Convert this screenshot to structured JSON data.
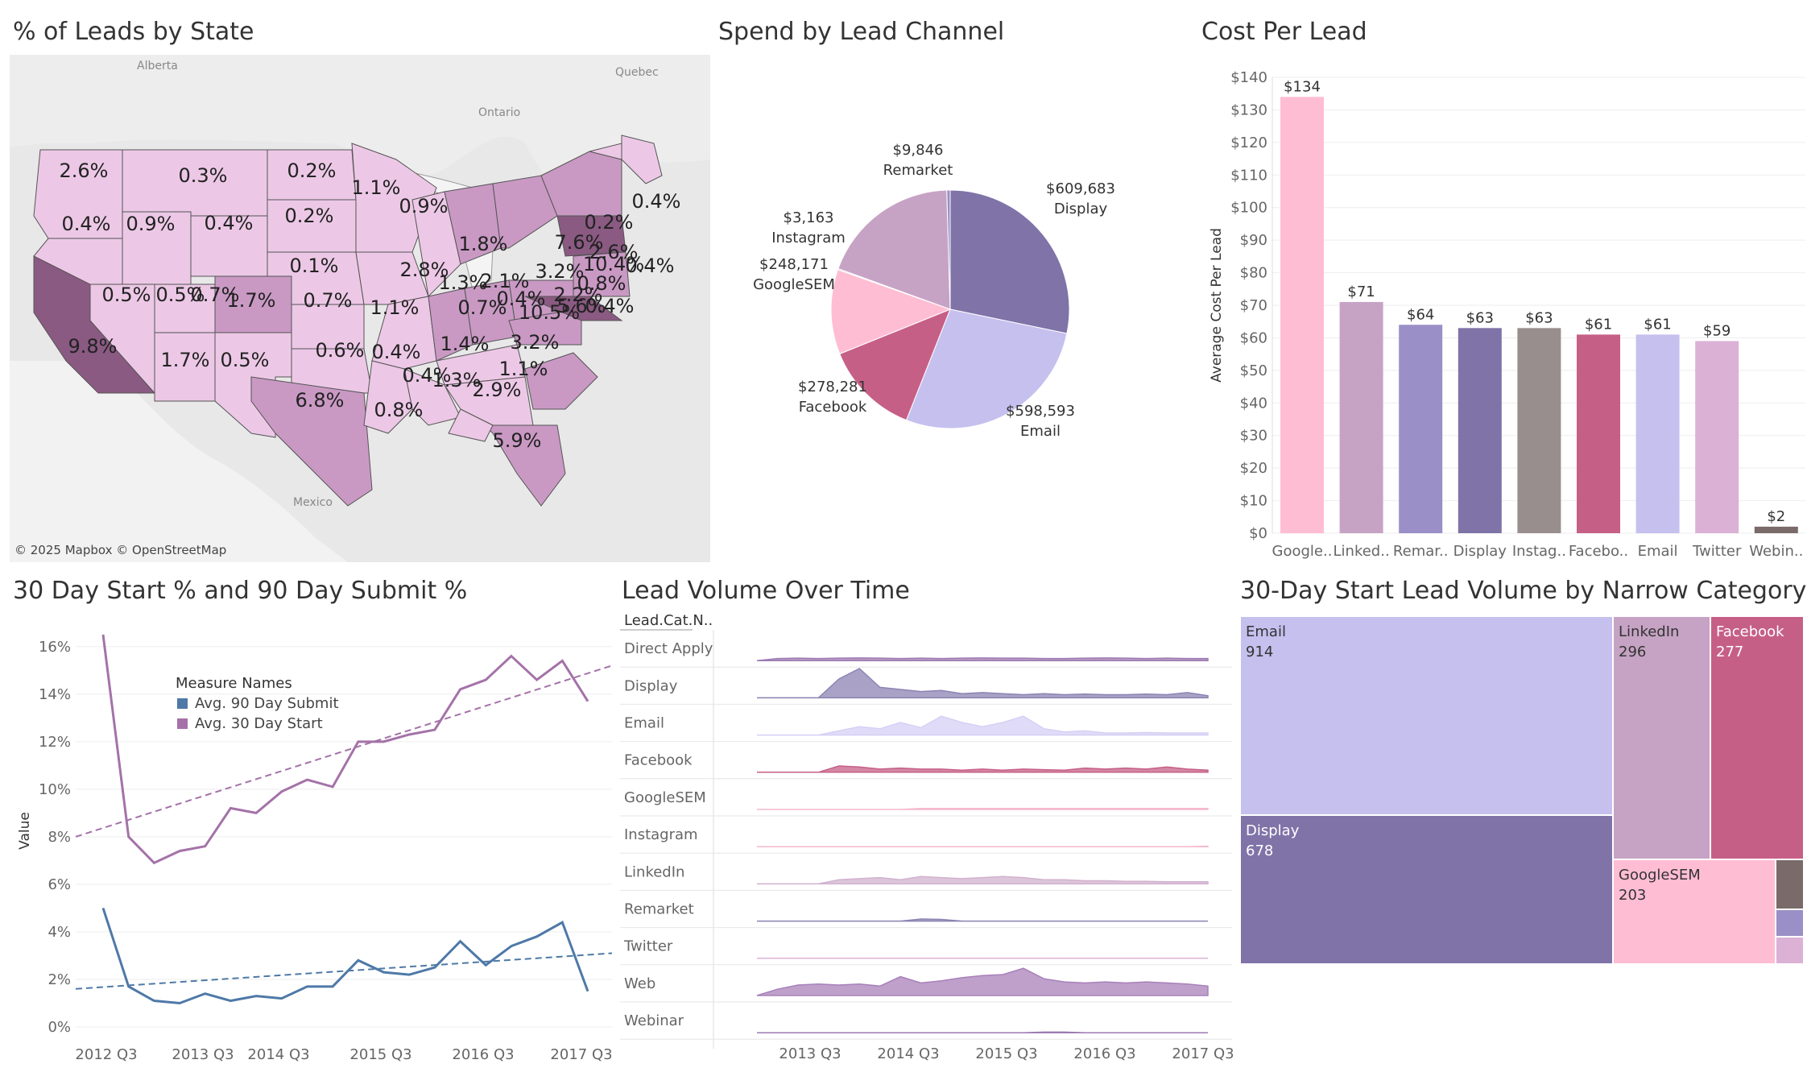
{
  "titles": {
    "map": "% of Leads by State",
    "pie": "Spend by Lead Channel",
    "cpl": "Cost Per Lead",
    "line": "30 Day Start % and 90 Day Submit %",
    "volume": "Lead Volume Over Time",
    "treemap": "30-Day Start Lead Volume by Narrow Category"
  },
  "map": {
    "attribution": "© 2025 Mapbox © OpenStreetMap",
    "places": [
      "Alberta",
      "Quebec",
      "Ontario",
      "Mexico"
    ],
    "state_labels": [
      "2.6%",
      "0.3%",
      "0.2%",
      "1.1%",
      "0.4%",
      "0.9%",
      "0.4%",
      "0.2%",
      "0.1%",
      "0.9%",
      "1.8%",
      "0.2%",
      "0.4%",
      "7.6%",
      "2.6%",
      "10.4%",
      "0.4%",
      "0.5%",
      "2.8%",
      "1.3%",
      "2.1%",
      "3.2%",
      "0.8%",
      "9.8%",
      "0.5%",
      "0.7%",
      "1.7%",
      "0.7%",
      "1.1%",
      "0.7%",
      "0.4%",
      "2.2%",
      "5.6%",
      "0.4%",
      "10.5%",
      "1.7%",
      "0.5%",
      "0.6%",
      "1.4%",
      "3.2%",
      "0.4%",
      "1.1%",
      "0.4%",
      "1.3%",
      "2.9%",
      "6.8%",
      "0.8%",
      "5.9%"
    ],
    "colors": {
      "light": "#ecc8e6",
      "mid": "#c999c4",
      "dark": "#a47199",
      "darkest": "#8a5a82"
    }
  },
  "pie": {
    "slices": [
      {
        "label": "Display",
        "value": 609683,
        "text": "$609,683",
        "color": "#7f73a8"
      },
      {
        "label": "Email",
        "value": 598593,
        "text": "$598,593",
        "color": "#c6c0ef"
      },
      {
        "label": "Facebook",
        "value": 278281,
        "text": "$278,281",
        "color": "#c65f86"
      },
      {
        "label": "GoogleSEM",
        "value": 248171,
        "text": "$248,171",
        "color": "#ffbdd4"
      },
      {
        "label": "Instagram",
        "value": 3163,
        "text": "$3,163",
        "color": "#9b95a0"
      },
      {
        "label": "Remarket",
        "value": 9846,
        "text": "$9,846",
        "color": "#9a8fc6"
      },
      {
        "label": "Other",
        "value": 410000,
        "text": "",
        "color": "#c6a3c4"
      }
    ]
  },
  "chart_data": [
    {
      "type": "bar",
      "title": "Cost Per Lead",
      "ylabel": "Average Cost Per Lead",
      "ylim": [
        0,
        140
      ],
      "yticks": [
        "$0",
        "$10",
        "$20",
        "$30",
        "$40",
        "$50",
        "$60",
        "$70",
        "$80",
        "$90",
        "$100",
        "$110",
        "$120",
        "$130",
        "$140"
      ],
      "categories": [
        "Google..",
        "Linked..",
        "Remar..",
        "Display",
        "Instag..",
        "Facebo..",
        "Email",
        "Twitter",
        "Webin.."
      ],
      "values": [
        134,
        71,
        64,
        63,
        63,
        61,
        61,
        59,
        2
      ],
      "value_labels": [
        "$134",
        "$71",
        "$64",
        "$63",
        "$63",
        "$61",
        "$61",
        "$59",
        "$2"
      ],
      "colors": [
        "#ffbdd4",
        "#c6a3c4",
        "#9a8fc6",
        "#7f73a8",
        "#998e8e",
        "#c65f86",
        "#c6c0ef",
        "#dbb1d6",
        "#7a6a6a"
      ]
    },
    {
      "type": "line",
      "title": "30 Day Start % and 90 Day Submit %",
      "ylabel": "Value",
      "ylim": [
        0,
        16.5
      ],
      "yticks": [
        "0%",
        "2%",
        "4%",
        "6%",
        "8%",
        "10%",
        "12%",
        "14%",
        "16%"
      ],
      "xticks": [
        "2012 Q3",
        "2013 Q3",
        "2014 Q3",
        "2015 Q3",
        "2016 Q3",
        "2017 Q3"
      ],
      "legend_title": "Measure Names",
      "series": [
        {
          "name": "Avg. 90 Day Submit",
          "color": "#4e79a7",
          "values": [
            5.0,
            1.7,
            1.1,
            1.0,
            1.4,
            1.1,
            1.3,
            1.2,
            1.7,
            1.7,
            2.8,
            2.3,
            2.2,
            2.5,
            3.6,
            2.6,
            3.4,
            3.8,
            4.4,
            1.5
          ],
          "trend": [
            1.6,
            3.1
          ]
        },
        {
          "name": "Avg. 30 Day Start",
          "color": "#a472a8",
          "values": [
            16.5,
            8.0,
            6.9,
            7.4,
            7.6,
            9.2,
            9.0,
            9.9,
            10.4,
            10.1,
            12.0,
            12.0,
            12.3,
            12.5,
            14.2,
            14.6,
            15.6,
            14.6,
            15.4,
            13.7
          ],
          "trend": [
            8.0,
            15.2
          ]
        }
      ]
    },
    {
      "type": "area",
      "title": "Lead Volume Over Time",
      "row_header": "Lead.Cat.N..",
      "xticks": [
        "2013 Q3",
        "2014 Q3",
        "2015 Q3",
        "2016 Q3",
        "2017 Q3"
      ],
      "series": [
        {
          "name": "Direct Apply",
          "color": "#9d7ab2",
          "values": [
            0,
            0.1,
            0.12,
            0.1,
            0.12,
            0.13,
            0.12,
            0.1,
            0.12,
            0.1,
            0.12,
            0.13,
            0.12,
            0.12,
            0.1,
            0.1,
            0.12,
            0.13,
            0.12,
            0.1,
            0.12,
            0.1,
            0.1
          ]
        },
        {
          "name": "Display",
          "color": "#8c83b3",
          "values": [
            0,
            0,
            0,
            0,
            0.9,
            1.4,
            0.5,
            0.4,
            0.3,
            0.35,
            0.2,
            0.25,
            0.2,
            0.15,
            0.2,
            0.15,
            0.18,
            0.15,
            0.15,
            0.18,
            0.15,
            0.25,
            0.1
          ]
        },
        {
          "name": "Email",
          "color": "#d5d0f5",
          "values": [
            0,
            0,
            0,
            0,
            0.2,
            0.4,
            0.3,
            0.6,
            0.35,
            0.9,
            0.6,
            0.4,
            0.6,
            0.9,
            0.3,
            0.15,
            0.2,
            0.1,
            0.1,
            0.12,
            0.1,
            0.1,
            0.1
          ]
        },
        {
          "name": "Facebook",
          "color": "#c65f86",
          "values": [
            0,
            0,
            0,
            0,
            0.3,
            0.25,
            0.15,
            0.2,
            0.15,
            0.15,
            0.1,
            0.15,
            0.1,
            0.15,
            0.12,
            0.1,
            0.2,
            0.15,
            0.2,
            0.15,
            0.25,
            0.15,
            0.1
          ]
        },
        {
          "name": "GoogleSEM",
          "color": "#f5b8cc",
          "values": [
            0,
            0,
            0,
            0,
            0,
            0,
            0,
            0,
            0.05,
            0.05,
            0.05,
            0.05,
            0.05,
            0.05,
            0.05,
            0.05,
            0.05,
            0.05,
            0.05,
            0.05,
            0.05,
            0.05,
            0.05
          ]
        },
        {
          "name": "Instagram",
          "color": "#f5b8cc",
          "values": [
            0,
            0,
            0,
            0,
            0,
            0,
            0,
            0,
            0,
            0,
            0,
            0,
            0,
            0,
            0,
            0,
            0,
            0,
            0,
            0,
            0,
            0,
            0.02
          ]
        },
        {
          "name": "LinkedIn",
          "color": "#d2b2cf",
          "values": [
            0,
            0,
            0,
            0,
            0.2,
            0.25,
            0.3,
            0.2,
            0.35,
            0.3,
            0.25,
            0.3,
            0.35,
            0.3,
            0.2,
            0.2,
            0.15,
            0.15,
            0.12,
            0.12,
            0.1,
            0.1,
            0.1
          ]
        },
        {
          "name": "Remarket",
          "color": "#8c83b3",
          "values": [
            0,
            0,
            0,
            0,
            0,
            0,
            0,
            0,
            0.1,
            0.08,
            0,
            0,
            0,
            0,
            0,
            0,
            0,
            0,
            0,
            0,
            0,
            0,
            0
          ]
        },
        {
          "name": "Twitter",
          "color": "#dbb1d6",
          "values": [
            0,
            0,
            0,
            0,
            0,
            0,
            0,
            0,
            0,
            0,
            0,
            0,
            0,
            0,
            0,
            0,
            0,
            0,
            0,
            0,
            0,
            0,
            0
          ]
        },
        {
          "name": "Web",
          "color": "#a880ba",
          "values": [
            0,
            0.3,
            0.5,
            0.55,
            0.5,
            0.55,
            0.45,
            0.9,
            0.6,
            0.7,
            0.85,
            0.95,
            1.0,
            1.3,
            0.8,
            0.65,
            0.6,
            0.65,
            0.6,
            0.65,
            0.6,
            0.55,
            0.45
          ]
        },
        {
          "name": "Webinar",
          "color": "#9d7ab2",
          "values": [
            0,
            0,
            0,
            0,
            0,
            0,
            0,
            0,
            0,
            0,
            0,
            0,
            0,
            0,
            0.03,
            0.03,
            0,
            0,
            0,
            0,
            0,
            0,
            0
          ]
        }
      ]
    },
    {
      "type": "heatmap",
      "title": "30-Day Start Lead Volume by Narrow Category",
      "items": [
        {
          "label": "Email",
          "value": 914,
          "color": "#c6c0ef"
        },
        {
          "label": "Display",
          "value": 678,
          "color": "#7f73a8"
        },
        {
          "label": "LinkedIn",
          "value": 296,
          "color": "#c6a3c4"
        },
        {
          "label": "Facebook",
          "value": 277,
          "color": "#c65f86"
        },
        {
          "label": "GoogleSEM",
          "value": 203,
          "color": "#ffbdd4"
        },
        {
          "label": "",
          "value": 30,
          "color": "#7a6a6a"
        },
        {
          "label": "",
          "value": 12,
          "color": "#9a8fc6"
        },
        {
          "label": "",
          "value": 5,
          "color": "#dbb1d6"
        }
      ]
    }
  ]
}
